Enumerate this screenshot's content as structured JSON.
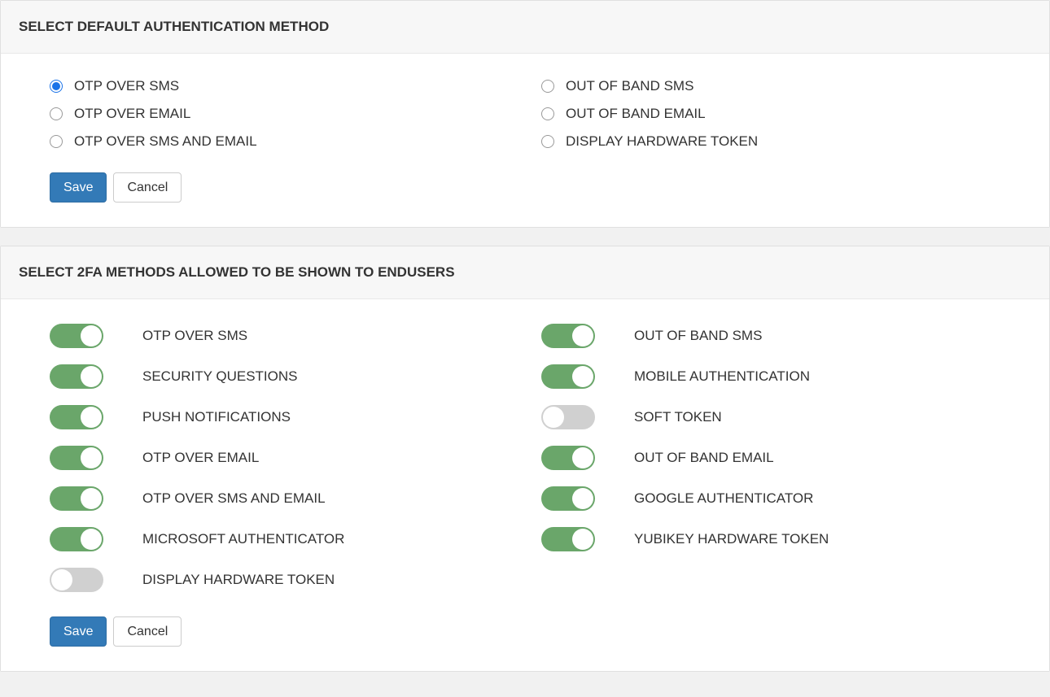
{
  "colors": {
    "panel_header_bg": "#f7f7f7",
    "panel_bg": "#ffffff",
    "page_bg": "#f1f1f1",
    "border": "#e0e0e0",
    "text": "#333333",
    "radio_selected": "#1a73e8",
    "btn_primary_bg": "#337ab7",
    "btn_primary_text": "#ffffff",
    "btn_default_bg": "#ffffff",
    "btn_default_border": "#cccccc",
    "toggle_on": "#6aa66a",
    "toggle_off": "#d0d0d0",
    "toggle_knob": "#ffffff"
  },
  "section1": {
    "title": "SELECT DEFAULT AUTHENTICATION METHOD",
    "left": [
      {
        "label": "OTP OVER SMS",
        "selected": true
      },
      {
        "label": "OTP OVER EMAIL",
        "selected": false
      },
      {
        "label": "OTP OVER SMS AND EMAIL",
        "selected": false
      }
    ],
    "right": [
      {
        "label": "OUT OF BAND SMS",
        "selected": false
      },
      {
        "label": "OUT OF BAND EMAIL",
        "selected": false
      },
      {
        "label": "DISPLAY HARDWARE TOKEN",
        "selected": false
      }
    ],
    "buttons": {
      "save": "Save",
      "cancel": "Cancel"
    }
  },
  "section2": {
    "title": "SELECT 2FA METHODS ALLOWED TO BE SHOWN TO ENDUSERS",
    "left": [
      {
        "label": "OTP OVER SMS",
        "on": true
      },
      {
        "label": "SECURITY QUESTIONS",
        "on": true
      },
      {
        "label": "PUSH NOTIFICATIONS",
        "on": true
      },
      {
        "label": "OTP OVER EMAIL",
        "on": true
      },
      {
        "label": "OTP OVER SMS AND EMAIL",
        "on": true
      },
      {
        "label": "MICROSOFT AUTHENTICATOR",
        "on": true
      },
      {
        "label": "DISPLAY HARDWARE TOKEN",
        "on": false
      }
    ],
    "right": [
      {
        "label": "OUT OF BAND SMS",
        "on": true
      },
      {
        "label": "MOBILE AUTHENTICATION",
        "on": true
      },
      {
        "label": "SOFT TOKEN",
        "on": false
      },
      {
        "label": "OUT OF BAND EMAIL",
        "on": true
      },
      {
        "label": "GOOGLE AUTHENTICATOR",
        "on": true
      },
      {
        "label": "YUBIKEY HARDWARE TOKEN",
        "on": true
      }
    ],
    "buttons": {
      "save": "Save",
      "cancel": "Cancel"
    }
  }
}
